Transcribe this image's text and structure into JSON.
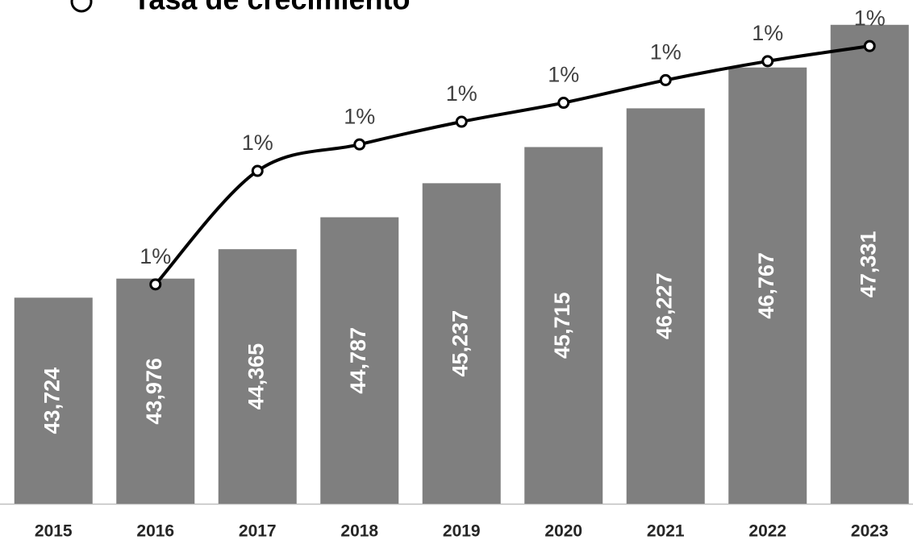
{
  "chart_data": {
    "type": "bar",
    "categories": [
      "2015",
      "2016",
      "2017",
      "2018",
      "2019",
      "2020",
      "2021",
      "2022",
      "2023"
    ],
    "series": [
      {
        "type": "bar",
        "color": "#7f7f7f",
        "values": [
          43724,
          43976,
          44365,
          44787,
          45237,
          45715,
          46227,
          46767,
          47331
        ],
        "value_labels": [
          "43,724",
          "43,976",
          "44,365",
          "44,787",
          "45,237",
          "45,715",
          "46,227",
          "46,767",
          "47,331"
        ]
      },
      {
        "type": "line",
        "name": "Tasa de crecimiento",
        "color": "#000000",
        "axis": "y2",
        "values": [
          null,
          0.58,
          0.88,
          0.95,
          1.01,
          1.06,
          1.12,
          1.17,
          1.21
        ],
        "value_labels": [
          null,
          "1%",
          "1%",
          "1%",
          "1%",
          "1%",
          "1%",
          "1%",
          "1%"
        ]
      }
    ],
    "ylim": [
      41000,
      48000
    ],
    "y2lim": [
      0,
      1.4
    ]
  }
}
